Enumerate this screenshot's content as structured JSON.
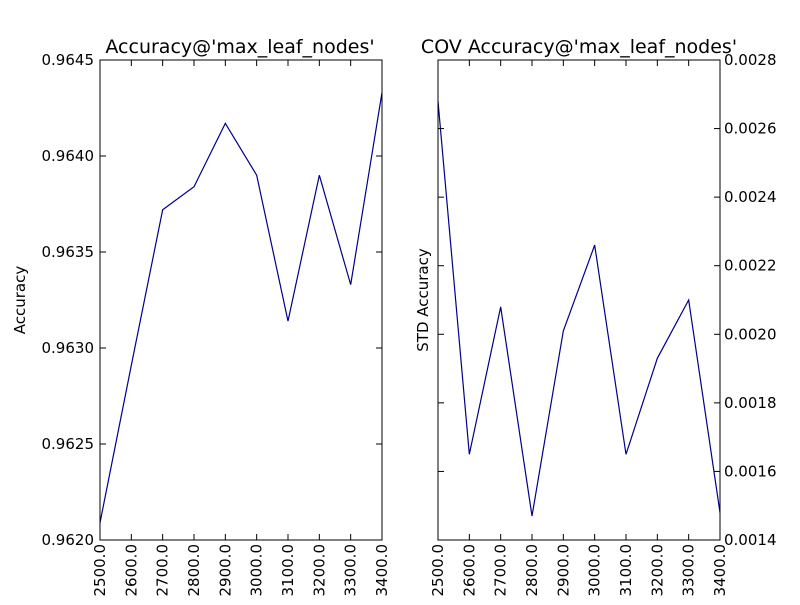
{
  "colors": {
    "background": "#ffffff",
    "axes": "#000000",
    "line": "#00008b"
  },
  "chart_data": [
    {
      "type": "line",
      "title": "Accuracy@'max_leaf_nodes'",
      "xlabel": "",
      "ylabel": "Accuracy",
      "y_axis_side": "left",
      "grid": false,
      "legend": "none",
      "x": [
        2500.0,
        2600.0,
        2700.0,
        2800.0,
        2900.0,
        3000.0,
        3100.0,
        3200.0,
        3300.0,
        3400.0
      ],
      "x_tick_labels": [
        "2500.0",
        "2600.0",
        "2700.0",
        "2800.0",
        "2900.0",
        "3000.0",
        "3100.0",
        "3200.0",
        "3300.0",
        "3400.0"
      ],
      "xlim": [
        2500,
        3400
      ],
      "ylim": [
        0.962,
        0.9645
      ],
      "y_ticks": [
        0.962,
        0.9625,
        0.963,
        0.9635,
        0.964,
        0.9645
      ],
      "y_tick_labels": [
        "0.9620",
        "0.9625",
        "0.9630",
        "0.9635",
        "0.9640",
        "0.9645"
      ],
      "series": [
        {
          "values": [
            0.96209,
            0.96291,
            0.96372,
            0.96384,
            0.96417,
            0.9639,
            0.96314,
            0.9639,
            0.96333,
            0.96433
          ]
        }
      ]
    },
    {
      "type": "line",
      "title": "COV Accuracy@'max_leaf_nodes'",
      "xlabel": "",
      "ylabel": "STD Accuracy",
      "y_axis_side": "right",
      "grid": false,
      "legend": "none",
      "x": [
        2500.0,
        2600.0,
        2700.0,
        2800.0,
        2900.0,
        3000.0,
        3100.0,
        3200.0,
        3300.0,
        3400.0
      ],
      "x_tick_labels": [
        "2500.0",
        "2600.0",
        "2700.0",
        "2800.0",
        "2900.0",
        "3000.0",
        "3100.0",
        "3200.0",
        "3300.0",
        "3400.0"
      ],
      "xlim": [
        2500,
        3400
      ],
      "ylim": [
        0.0014,
        0.0028
      ],
      "y_ticks": [
        0.0014,
        0.0016,
        0.0018,
        0.002,
        0.0022,
        0.0024,
        0.0026,
        0.0028
      ],
      "y_tick_labels": [
        "0.0014",
        "0.0016",
        "0.0018",
        "0.0020",
        "0.0022",
        "0.0024",
        "0.0026",
        "0.0028"
      ],
      "series": [
        {
          "values": [
            0.00268,
            0.00165,
            0.00208,
            0.00147,
            0.00201,
            0.00226,
            0.00165,
            0.00193,
            0.0021,
            0.00148
          ]
        }
      ]
    }
  ]
}
